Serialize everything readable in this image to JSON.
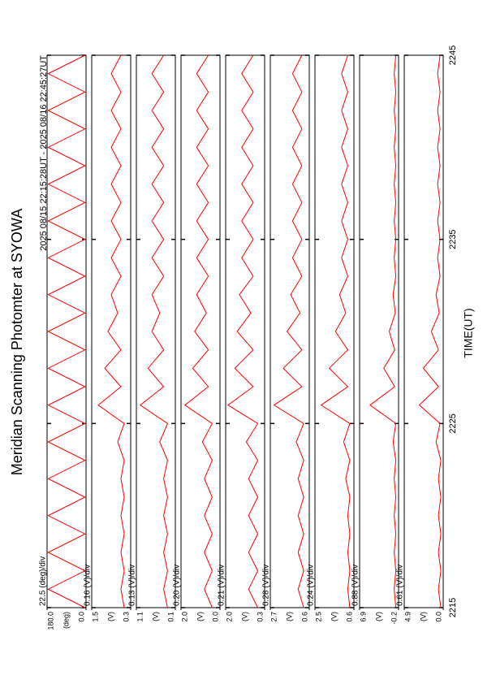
{
  "figure": {
    "title": "Meridian Scanning Photomter at SYOWA",
    "time_range": "2025 08/15 22:15:28UT - 2025 08/16 22:45:27UT",
    "xlabel": "TIME(UT)",
    "x": [
      2215,
      2216,
      2217,
      2218,
      2219,
      2220,
      2221,
      2222,
      2223,
      2224,
      2225,
      2226,
      2227,
      2228,
      2229,
      2230,
      2231,
      2232,
      2233,
      2234,
      2235,
      2236,
      2237,
      2238,
      2239,
      2240,
      2241,
      2242,
      2243,
      2244,
      2245
    ],
    "xlim": [
      2215,
      2245
    ],
    "xticks": [
      2215,
      2225,
      2235,
      2245
    ]
  },
  "chart_data": [
    {
      "type": "line",
      "div_label": "22.5 (deg)/div",
      "unit": "(deg)",
      "ylim": [
        0,
        180
      ],
      "yticks": [
        {
          "value": 0,
          "label": "0.0"
        },
        {
          "value": 180,
          "label": "180.0"
        }
      ],
      "series": [
        {
          "color": "#ff0000",
          "values": [
            5,
            175,
            5,
            175,
            5,
            175,
            5,
            175,
            5,
            175,
            5,
            175,
            5,
            175,
            5,
            175,
            5,
            175,
            5,
            175,
            5,
            175,
            5,
            175,
            5,
            175,
            5,
            175,
            5,
            175,
            5
          ]
        }
      ]
    },
    {
      "type": "line",
      "div_label": "0.16 (V)/div",
      "unit": "(V)",
      "ylim": [
        0.3,
        1.5
      ],
      "yticks": [
        0.3,
        1.5
      ],
      "series": [
        {
          "color": "#ff0000",
          "values": [
            0.5,
            0.6,
            0.5,
            0.6,
            0.5,
            0.6,
            0.5,
            0.6,
            0.5,
            0.7,
            0.5,
            1.3,
            0.6,
            1.1,
            0.6,
            1.0,
            0.7,
            0.9,
            0.6,
            0.9,
            0.6,
            0.9,
            0.6,
            0.9,
            0.6,
            0.9,
            0.6,
            0.9,
            0.6,
            0.9,
            0.6
          ]
        }
      ]
    },
    {
      "type": "line",
      "div_label": "0.13 (V)/div",
      "unit": "(V)",
      "ylim": [
        0.1,
        1.1
      ],
      "yticks": [
        0.1,
        1.1
      ],
      "series": [
        {
          "color": "#ff0000",
          "values": [
            0.3,
            0.4,
            0.3,
            0.4,
            0.3,
            0.4,
            0.3,
            0.4,
            0.3,
            0.5,
            0.3,
            1.0,
            0.4,
            0.8,
            0.4,
            0.7,
            0.5,
            0.7,
            0.4,
            0.7,
            0.4,
            0.7,
            0.4,
            0.7,
            0.4,
            0.7,
            0.4,
            0.7,
            0.4,
            0.7,
            0.4
          ]
        }
      ]
    },
    {
      "type": "line",
      "div_label": "0.20 (V)/div",
      "unit": "(V)",
      "ylim": [
        0,
        2
      ],
      "yticks": [
        {
          "value": 0,
          "label": "0.0"
        },
        {
          "value": 2,
          "label": "2.0"
        }
      ],
      "series": [
        {
          "color": "#ff0000",
          "values": [
            0.4,
            0.8,
            0.4,
            0.8,
            0.4,
            0.8,
            0.4,
            0.8,
            0.4,
            0.9,
            0.4,
            1.8,
            0.6,
            1.4,
            0.6,
            1.3,
            0.7,
            1.2,
            0.6,
            1.2,
            0.6,
            1.2,
            0.6,
            1.2,
            0.6,
            1.2,
            0.6,
            1.2,
            0.6,
            1.2,
            0.6
          ]
        }
      ]
    },
    {
      "type": "line",
      "div_label": "0.21 (V)/div",
      "unit": "(V)",
      "ylim": [
        0.3,
        2
      ],
      "yticks": [
        0.3,
        {
          "value": 2,
          "label": "2.0"
        }
      ],
      "series": [
        {
          "color": "#ff0000",
          "values": [
            0.6,
            1.0,
            0.6,
            1.0,
            0.6,
            1.0,
            0.6,
            1.0,
            0.6,
            1.1,
            0.6,
            1.9,
            0.8,
            1.6,
            0.8,
            1.5,
            0.9,
            1.4,
            0.8,
            1.3,
            0.8,
            1.3,
            0.8,
            1.3,
            0.8,
            1.3,
            0.8,
            1.3,
            0.8,
            1.3,
            0.8
          ]
        }
      ]
    },
    {
      "type": "line",
      "div_label": "0.28 (V)/div",
      "unit": "(V)",
      "ylim": [
        0.6,
        2.7
      ],
      "yticks": [
        0.6,
        2.7
      ],
      "series": [
        {
          "color": "#ff0000",
          "values": [
            0.9,
            1.2,
            0.9,
            1.2,
            0.9,
            1.2,
            0.9,
            1.2,
            0.9,
            1.3,
            0.9,
            2.5,
            1.0,
            2.0,
            1.0,
            1.8,
            1.1,
            1.6,
            1.0,
            1.5,
            1.0,
            1.5,
            1.0,
            1.5,
            1.0,
            1.5,
            1.0,
            1.5,
            1.0,
            1.5,
            1.0
          ]
        }
      ]
    },
    {
      "type": "line",
      "div_label": "0.24 (V)/div",
      "unit": "(V)",
      "ylim": [
        0.6,
        2.5
      ],
      "yticks": [
        0.6,
        2.5
      ],
      "series": [
        {
          "color": "#ff0000",
          "values": [
            0.8,
            0.9,
            0.8,
            0.9,
            0.8,
            0.9,
            0.8,
            1.0,
            0.8,
            1.1,
            0.8,
            2.2,
            0.9,
            1.8,
            0.9,
            1.5,
            1.0,
            1.3,
            0.9,
            1.2,
            0.9,
            1.2,
            0.9,
            1.2,
            0.9,
            1.2,
            0.9,
            1.2,
            0.9,
            1.2,
            0.9
          ]
        }
      ]
    },
    {
      "type": "line",
      "div_label": "0.88 (V)/div",
      "unit": "(V)",
      "ylim": [
        -0.2,
        6.9
      ],
      "yticks": [
        -0.2,
        6.9
      ],
      "series": [
        {
          "color": "#ff0000",
          "values": [
            0.3,
            0.6,
            0.3,
            0.6,
            0.3,
            0.6,
            0.3,
            0.6,
            0.3,
            0.8,
            0.3,
            5.0,
            0.5,
            2.5,
            0.5,
            1.5,
            0.4,
            0.8,
            0.3,
            0.6,
            0.3,
            0.6,
            0.3,
            0.6,
            0.3,
            0.6,
            0.3,
            0.6,
            0.3,
            0.6,
            0.3
          ]
        }
      ]
    },
    {
      "type": "line",
      "div_label": "0.61 (V)/div",
      "unit": "(V)",
      "ylim": [
        0,
        4.9
      ],
      "yticks": [
        {
          "value": 0,
          "label": "0.0"
        },
        4.9
      ],
      "series": [
        {
          "color": "#ff0000",
          "values": [
            0.3,
            0.6,
            0.3,
            0.6,
            0.3,
            0.6,
            0.3,
            0.6,
            0.3,
            0.9,
            0.4,
            3.0,
            0.6,
            2.5,
            0.6,
            1.5,
            0.5,
            0.9,
            0.4,
            0.7,
            0.4,
            0.7,
            0.4,
            0.7,
            0.4,
            0.7,
            0.4,
            0.7,
            0.4,
            0.7,
            0.4
          ]
        }
      ]
    }
  ]
}
